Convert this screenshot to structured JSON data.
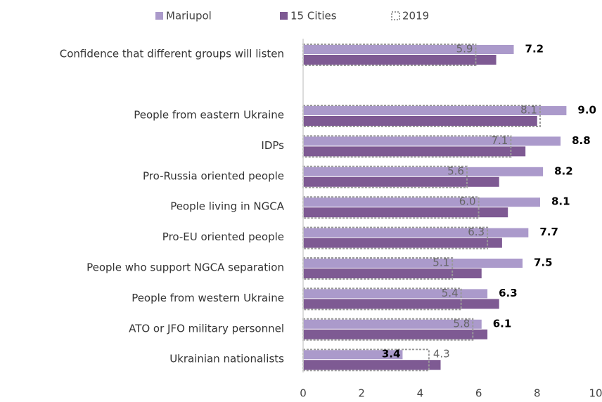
{
  "chart_data": {
    "type": "bar",
    "orientation": "horizontal",
    "categories": [
      "Confidence that different groups will listen",
      "People from eastern Ukraine",
      "IDPs",
      "Pro-Russia oriented people",
      "People living in NGCA",
      "Pro-EU oriented people",
      "People who support NGCA separation",
      "People from western Ukraine",
      "ATO or JFO military personnel",
      "Ukrainian nationalists"
    ],
    "series": [
      {
        "name": "Mariupol",
        "color": "#ab9acb",
        "values": [
          7.2,
          9.0,
          8.8,
          8.2,
          8.1,
          7.7,
          7.5,
          6.3,
          6.1,
          3.4
        ],
        "value_labels": [
          "7.2",
          "9.0",
          "8.8",
          "8.2",
          "8.1",
          "7.7",
          "7.5",
          "6.3",
          "6.1",
          "3.4"
        ]
      },
      {
        "name": "15 Cities",
        "color": "#7e5a93",
        "values": [
          6.6,
          8.0,
          7.6,
          6.7,
          7.0,
          6.8,
          6.1,
          6.7,
          6.3,
          4.7
        ]
      },
      {
        "name": "2019",
        "color": "#999999",
        "style": "dotted-outline",
        "values": [
          5.9,
          8.1,
          7.1,
          5.6,
          6.0,
          6.3,
          5.1,
          5.4,
          5.8,
          4.3
        ],
        "value_labels": [
          "5.9",
          "8.1",
          "7.1",
          "5.6",
          "6.0",
          "6.3",
          "5.1",
          "5.4",
          "5.8",
          "4.3"
        ]
      }
    ],
    "xlim": [
      0,
      10
    ],
    "xticks": [
      0,
      2,
      4,
      6,
      8,
      10
    ],
    "legend": "top"
  }
}
